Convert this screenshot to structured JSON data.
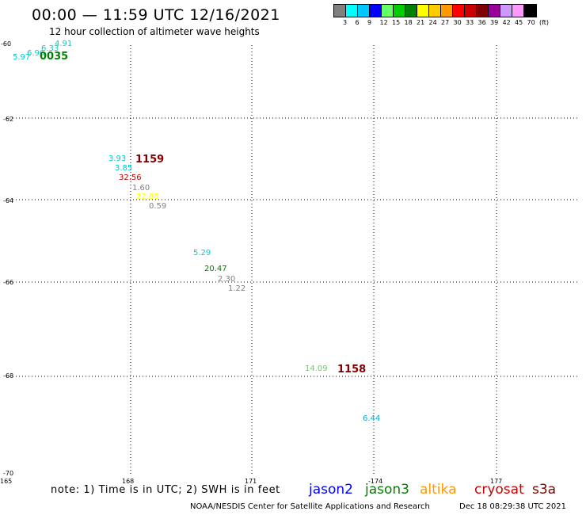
{
  "header": {
    "title": "00:00 — 11:59 UTC 12/16/2021",
    "subtitle": "12 hour collection of altimeter wave heights"
  },
  "colorbar": {
    "colors": [
      "#808080",
      "#00ffff",
      "#00c8ff",
      "#0000ff",
      "#66ff66",
      "#00cc00",
      "#008000",
      "#ffff00",
      "#ffcc00",
      "#ff9900",
      "#ff0000",
      "#cc0000",
      "#800000",
      "#990099",
      "#cc99ff",
      "#ff99ff",
      "#000000"
    ],
    "ticks": [
      "3",
      "6",
      "9",
      "12",
      "15",
      "18",
      "21",
      "24",
      "27",
      "30",
      "33",
      "36",
      "39",
      "42",
      "45",
      "70",
      "(ft)"
    ]
  },
  "map": {
    "lat_labels": [
      "-60",
      "-62",
      "-64",
      "-66",
      "-68",
      "-70"
    ],
    "lon_labels": [
      "165",
      "168",
      "171",
      "-174",
      "177"
    ],
    "observations": [
      {
        "label": "5.97",
        "color": "#00cccc"
      },
      {
        "label": "6.96",
        "color": "#00cccc"
      },
      {
        "label": "6.33",
        "color": "#00cccc"
      },
      {
        "label": "4.91",
        "color": "#00cccc"
      },
      {
        "label": "0035",
        "color": "#008000",
        "stamp": true
      },
      {
        "label": "3.93",
        "color": "#00cccc"
      },
      {
        "label": "1159",
        "color": "#800000",
        "stamp": true
      },
      {
        "label": "3.85",
        "color": "#00cccc"
      },
      {
        "label": "32.56",
        "color": "#cc0000"
      },
      {
        "label": "1.60",
        "color": "#808080"
      },
      {
        "label": "22.88",
        "color": "#ffff00"
      },
      {
        "label": "0.59",
        "color": "#808080"
      },
      {
        "label": "5.29",
        "color": "#00cccc"
      },
      {
        "label": "20.47",
        "color": "#008000"
      },
      {
        "label": "2.30",
        "color": "#808080"
      },
      {
        "label": "1.22",
        "color": "#808080"
      },
      {
        "label": "14.09",
        "color": "#66cc66"
      },
      {
        "label": "1158",
        "color": "#800000",
        "stamp": true
      },
      {
        "label": "6.44",
        "color": "#00aacc"
      }
    ]
  },
  "footer": {
    "note": "note: 1) Time is in UTC; 2) SWH is in feet",
    "satellites": [
      {
        "name": "jason2",
        "color": "#0000ff"
      },
      {
        "name": "jason3",
        "color": "#008000"
      },
      {
        "name": "altika",
        "color": "#ff9900"
      },
      {
        "name": "cryosat",
        "color": "#cc0000"
      },
      {
        "name": "s3a",
        "color": "#800000"
      }
    ],
    "credit": "NOAA/NESDIS Center for Satellite Applications and Research",
    "timestamp": "Dec 18 08:29:38 UTC 2021"
  }
}
